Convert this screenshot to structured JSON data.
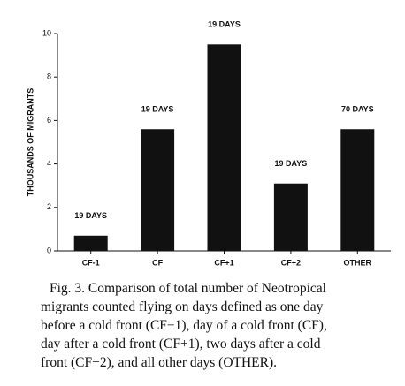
{
  "chart_data": {
    "type": "bar",
    "y_label": "THOUSANDS OF MIGRANTS",
    "categories": [
      "CF-1",
      "CF",
      "CF+1",
      "CF+2",
      "OTHER"
    ],
    "values": [
      0.7,
      5.6,
      9.5,
      3.1,
      5.6
    ],
    "annotations": [
      "19 DAYS",
      "19 DAYS",
      "19 DAYS",
      "19 DAYS",
      "70 DAYS"
    ],
    "color": "#111111",
    "ylim": [
      0,
      10
    ],
    "yticks": [
      0,
      2,
      4,
      6,
      8,
      10
    ],
    "grid": false,
    "caption": [
      "Fig. 3.   Comparison of total number of Neotropical",
      "migrants counted flying on days defined as one day",
      "before a cold front (CF−1), day of a cold front (CF),",
      "day after a cold front (CF+1), two days after a cold",
      "front (CF+2), and all other days (OTHER)."
    ]
  }
}
